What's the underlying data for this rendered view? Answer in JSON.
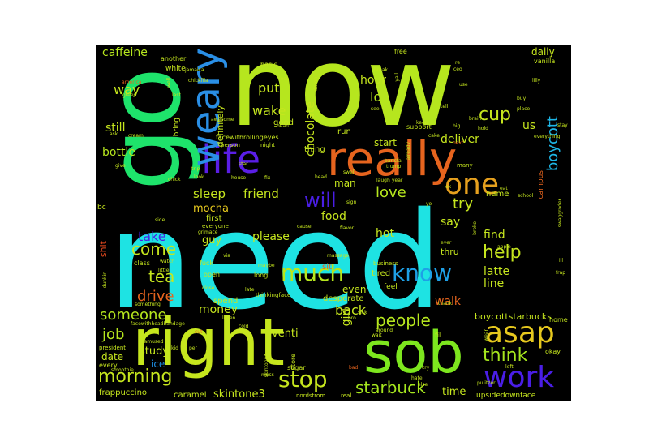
{
  "words": [
    {
      "text": "need",
      "color": "#1ee3e3"
    },
    {
      "text": "now",
      "color": "#b6e61e"
    },
    {
      "text": "go",
      "color": "#1ee36b"
    },
    {
      "text": "right",
      "color": "#c6e61e"
    },
    {
      "text": "sob",
      "color": "#7de61e"
    },
    {
      "text": "really",
      "color": "#e6641e"
    },
    {
      "text": "life",
      "color": "#5a1ee6"
    },
    {
      "text": "weary",
      "color": "#2a8fe6"
    },
    {
      "text": "one",
      "color": "#e6a01e"
    },
    {
      "text": "asap",
      "color": "#e6c81e"
    },
    {
      "text": "work",
      "color": "#4a1ee6"
    },
    {
      "text": "know",
      "color": "#1ea0e6"
    },
    {
      "text": "much",
      "color": "#b6e61e"
    },
    {
      "text": "morning",
      "color": "#c6e61e"
    },
    {
      "text": "stop",
      "color": "#c6e61e"
    },
    {
      "text": "starbuck",
      "color": "#a6e61e"
    },
    {
      "text": "people",
      "color": "#b6e61e"
    },
    {
      "text": "think",
      "color": "#a6e61e"
    },
    {
      "text": "help",
      "color": "#c6e61e"
    },
    {
      "text": "cup",
      "color": "#c6e61e"
    },
    {
      "text": "boycott",
      "color": "#1eb6e6"
    },
    {
      "text": "will",
      "color": "#4a1ee6"
    },
    {
      "text": "love",
      "color": "#b6e61e"
    },
    {
      "text": "try",
      "color": "#c6e61e"
    },
    {
      "text": "tea",
      "color": "#c6e61e"
    },
    {
      "text": "come",
      "color": "#c6e61e"
    },
    {
      "text": "drive",
      "color": "#e6641e"
    },
    {
      "text": "someone",
      "color": "#b6e61e"
    },
    {
      "text": "job",
      "color": "#b6e61e"
    },
    {
      "text": "caffeine",
      "color": "#b6e61e"
    },
    {
      "text": "way",
      "color": "#c6e61e"
    },
    {
      "text": "put",
      "color": "#c6e61e"
    },
    {
      "text": "lol",
      "color": "#b6e61e"
    },
    {
      "text": "wake",
      "color": "#c6e61e"
    },
    {
      "text": "hour",
      "color": "#c6e61e"
    },
    {
      "text": "still",
      "color": "#c6e61e"
    },
    {
      "text": "bottle",
      "color": "#b6e61e"
    },
    {
      "text": "sleep",
      "color": "#c6e61e"
    },
    {
      "text": "friend",
      "color": "#c6e61e"
    },
    {
      "text": "mocha",
      "color": "#e6c81e"
    },
    {
      "text": "take",
      "color": "#4a1ee6"
    },
    {
      "text": "chocolate",
      "color": "#c6e61e"
    },
    {
      "text": "definitely",
      "color": "#c6e61e"
    },
    {
      "text": "deliver",
      "color": "#c6e61e"
    },
    {
      "text": "us",
      "color": "#c6e61e"
    },
    {
      "text": "daily",
      "color": "#c6e61e"
    },
    {
      "text": "say",
      "color": "#c6e61e"
    },
    {
      "text": "find",
      "color": "#c6e61e"
    },
    {
      "text": "latte",
      "color": "#c6e61e"
    },
    {
      "text": "line",
      "color": "#c6e61e"
    },
    {
      "text": "walk",
      "color": "#e6641e"
    },
    {
      "text": "back",
      "color": "#c6e61e"
    },
    {
      "text": "girl",
      "color": "#c6e61e"
    },
    {
      "text": "hot",
      "color": "#c6e61e"
    },
    {
      "text": "food",
      "color": "#c6e61e"
    },
    {
      "text": "please",
      "color": "#c6e61e"
    },
    {
      "text": "money",
      "color": "#c6e61e"
    },
    {
      "text": "guy",
      "color": "#c6e61e"
    },
    {
      "text": "study",
      "color": "#c6e61e"
    },
    {
      "text": "venti",
      "color": "#c6e61e"
    },
    {
      "text": "skintone3",
      "color": "#c6e61e"
    },
    {
      "text": "time",
      "color": "#c6e61e"
    },
    {
      "text": "date",
      "color": "#c6e61e"
    },
    {
      "text": "ice",
      "color": "#1e8fe6"
    },
    {
      "text": "boycottstarbucks",
      "color": "#c6e61e"
    },
    {
      "text": "frappuccino",
      "color": "#c6e61e"
    },
    {
      "text": "caramel",
      "color": "#c6e61e"
    },
    {
      "text": "upsidedownface",
      "color": "#c6e61e"
    },
    {
      "text": "even",
      "color": "#c6e61e"
    },
    {
      "text": "man",
      "color": "#c6e61e"
    },
    {
      "text": "start",
      "color": "#c6e61e"
    },
    {
      "text": "thru",
      "color": "#c6e61e"
    },
    {
      "text": "name",
      "color": "#c6e61e"
    },
    {
      "text": "good",
      "color": "#c6e61e"
    },
    {
      "text": "run",
      "color": "#c6e61e"
    },
    {
      "text": "thing",
      "color": "#c6e61e"
    },
    {
      "text": "first",
      "color": "#c6e61e"
    },
    {
      "text": "shit",
      "color": "#e64a1e"
    },
    {
      "text": "spend",
      "color": "#c6e61e"
    },
    {
      "text": "desperate",
      "color": "#c6e61e"
    },
    {
      "text": "tired",
      "color": "#c6e61e"
    },
    {
      "text": "feel",
      "color": "#c6e61e"
    },
    {
      "text": "sit",
      "color": "#e6641e"
    },
    {
      "text": "bring",
      "color": "#c6e61e"
    },
    {
      "text": "white",
      "color": "#c6e61e"
    },
    {
      "text": "another",
      "color": "#c6e61e"
    },
    {
      "text": "bc",
      "color": "#c6e61e"
    },
    {
      "text": "fuck",
      "color": "#c6e61e"
    },
    {
      "text": "class",
      "color": "#c6e61e"
    },
    {
      "text": "long",
      "color": "#c6e61e"
    },
    {
      "text": "open",
      "color": "#c6e61e"
    },
    {
      "text": "support",
      "color": "#c6e61e"
    },
    {
      "text": "free",
      "color": "#c6e61e"
    },
    {
      "text": "vanilla",
      "color": "#c6e61e"
    },
    {
      "text": "campus",
      "color": "#e6641e"
    },
    {
      "text": "okay",
      "color": "#c6e61e"
    },
    {
      "text": "home",
      "color": "#c6e61e"
    },
    {
      "text": "store",
      "color": "#c6e61e"
    },
    {
      "text": "sugar",
      "color": "#c6e61e"
    },
    {
      "text": "every",
      "color": "#c6e61e"
    },
    {
      "text": "basic",
      "color": "#c6e61e"
    },
    {
      "text": "facewithrollingeyes",
      "color": "#c6e61e"
    },
    {
      "text": "everyone",
      "color": "#c6e61e"
    },
    {
      "text": "person",
      "color": "#c6e61e"
    },
    {
      "text": "night",
      "color": "#c6e61e"
    },
    {
      "text": "thinkingface",
      "color": "#c6e61e"
    },
    {
      "text": "business",
      "color": "#c6e61e"
    },
    {
      "text": "president",
      "color": "#c6e61e"
    },
    {
      "text": "nordstrom",
      "color": "#c6e61e"
    },
    {
      "text": "real",
      "color": "#c6e61e"
    },
    {
      "text": "fil",
      "color": "#c6e61e"
    },
    {
      "text": "dunkin",
      "color": "#c6e61e"
    },
    {
      "text": "well",
      "color": "#c6e61e"
    },
    {
      "text": "america",
      "color": "#e6641e"
    },
    {
      "text": "green",
      "color": "#c6e61e"
    },
    {
      "text": "last",
      "color": "#c6e61e"
    },
    {
      "text": "jamaica",
      "color": "#c6e61e"
    },
    {
      "text": "chickfila",
      "color": "#c6e61e"
    },
    {
      "text": "cream",
      "color": "#c6e61e"
    },
    {
      "text": "break",
      "color": "#c6e61e"
    },
    {
      "text": "ceo",
      "color": "#c6e61e"
    },
    {
      "text": "swell",
      "color": "#c6e61e"
    },
    {
      "text": "trump",
      "color": "#c6e61e"
    },
    {
      "text": "laugh",
      "color": "#c6e61e"
    },
    {
      "text": "year",
      "color": "#c6e61e"
    },
    {
      "text": "many",
      "color": "#c6e61e"
    },
    {
      "text": "give",
      "color": "#c6e61e"
    },
    {
      "text": "chick",
      "color": "#c6e61e"
    },
    {
      "text": "trip",
      "color": "#c6e61e"
    },
    {
      "text": "look",
      "color": "#c6e61e"
    },
    {
      "text": "house",
      "color": "#c6e61e"
    },
    {
      "text": "fix",
      "color": "#c6e61e"
    },
    {
      "text": "head",
      "color": "#c6e61e"
    },
    {
      "text": "sign",
      "color": "#c6e61e"
    },
    {
      "text": "apple",
      "color": "#c6e61e"
    },
    {
      "text": "ill",
      "color": "#c6e61e"
    },
    {
      "text": "frap",
      "color": "#c6e61e"
    },
    {
      "text": "school",
      "color": "#c6e61e"
    },
    {
      "text": "eat",
      "color": "#c6e61e"
    },
    {
      "text": "big",
      "color": "#c6e61e"
    },
    {
      "text": "next",
      "color": "#e6641e"
    },
    {
      "text": "brain",
      "color": "#c6e61e"
    },
    {
      "text": "hold",
      "color": "#c6e61e"
    },
    {
      "text": "buy",
      "color": "#c6e61e"
    },
    {
      "text": "place",
      "color": "#c6e61e"
    },
    {
      "text": "lilly",
      "color": "#c6e61e"
    },
    {
      "text": "stay",
      "color": "#c6e61e"
    },
    {
      "text": "keep",
      "color": "#c6e61e"
    },
    {
      "text": "use",
      "color": "#c6e61e"
    },
    {
      "text": "see",
      "color": "#c6e61e"
    },
    {
      "text": "tell",
      "color": "#c6e61e"
    },
    {
      "text": "re",
      "color": "#c6e61e"
    },
    {
      "text": "everything",
      "color": "#c6e61e"
    },
    {
      "text": "thank",
      "color": "#c6e61e"
    },
    {
      "text": "cry",
      "color": "#c6e61e"
    },
    {
      "text": "bad",
      "color": "#e6641e"
    },
    {
      "text": "pulitzer",
      "color": "#c6e61e"
    },
    {
      "text": "smoothie",
      "color": "#c6e61e"
    },
    {
      "text": "facewithheadbandage",
      "color": "#c6e61e"
    },
    {
      "text": "unamused",
      "color": "#c6e61e"
    },
    {
      "text": "something",
      "color": "#c6e61e"
    },
    {
      "text": "close",
      "color": "#c6e61e"
    },
    {
      "text": "late",
      "color": "#c6e61e"
    },
    {
      "text": "maybe",
      "color": "#c6e61e"
    },
    {
      "text": "massage",
      "color": "#c6e61e"
    },
    {
      "text": "sick",
      "color": "#c6e61e"
    },
    {
      "text": "wait",
      "color": "#c6e61e"
    },
    {
      "text": "listen",
      "color": "#c6e61e"
    },
    {
      "text": "grimace",
      "color": "#c6e61e"
    },
    {
      "text": "watch",
      "color": "#c6e61e"
    },
    {
      "text": "little",
      "color": "#c6e61e"
    },
    {
      "text": "cut",
      "color": "#e6641e"
    },
    {
      "text": "per",
      "color": "#c6e61e"
    },
    {
      "text": "moss",
      "color": "#c6e61e"
    },
    {
      "text": "skintone4",
      "color": "#c6e61e"
    },
    {
      "text": "else",
      "color": "#c6e61e"
    },
    {
      "text": "ever",
      "color": "#c6e61e"
    },
    {
      "text": "wear",
      "color": "#c6e61e"
    },
    {
      "text": "flavor",
      "color": "#c6e61e"
    },
    {
      "text": "cause",
      "color": "#c6e61e"
    },
    {
      "text": "awesome",
      "color": "#c6e61e"
    },
    {
      "text": "star",
      "color": "#c6e61e"
    },
    {
      "text": "barista",
      "color": "#c6e61e"
    },
    {
      "text": "swaggroder",
      "color": "#c6e61e"
    },
    {
      "text": "already",
      "color": "#c6e61e"
    },
    {
      "text": "yall",
      "color": "#c6e61e"
    },
    {
      "text": "damn",
      "color": "#c6e61e"
    },
    {
      "text": "broke",
      "color": "#c6e61e"
    },
    {
      "text": "yo",
      "color": "#c6e61e"
    },
    {
      "text": "ask",
      "color": "#c6e61e"
    },
    {
      "text": "side",
      "color": "#c6e61e"
    },
    {
      "text": "bean",
      "color": "#c6e61e"
    },
    {
      "text": "kid",
      "color": "#c6e61e"
    },
    {
      "text": "cold",
      "color": "#c6e61e"
    },
    {
      "text": "via",
      "color": "#c6e61e"
    },
    {
      "text": "lose",
      "color": "#c6e61e"
    },
    {
      "text": "ok",
      "color": "#c6e61e"
    },
    {
      "text": "bro",
      "color": "#c6e61e"
    },
    {
      "text": "around",
      "color": "#c6e61e"
    },
    {
      "text": "hate",
      "color": "#c6e61e"
    },
    {
      "text": "left",
      "color": "#c6e61e"
    },
    {
      "text": "cake",
      "color": "#c6e61e"
    }
  ]
}
